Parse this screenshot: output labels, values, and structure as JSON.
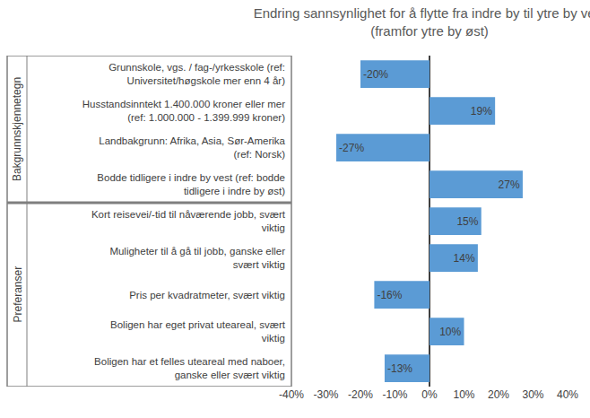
{
  "chart_data": {
    "type": "bar",
    "orientation": "horizontal",
    "title": "Endring sannsynlighet for å flytte fra indre by til ytre by vest\n(framfor ytre by øst)",
    "categories": [
      "Grunnskole, vgs. / fag-/yrkesskole (ref: Universitet/høgskole mer enn 4 år)",
      "Husstandsinntekt 1.400.000 kroner eller mer (ref: 1.000.000 - 1.399.999 kroner)",
      "Landbakgrunn: Afrika, Asia, Sør-Amerika (ref: Norsk)",
      "Bodde tidligere i indre by vest (ref: bodde tidligere i indre by øst)",
      "Kort reisevei/-tid til nåværende jobb, svært viktig",
      "Muligheter til å gå til jobb, ganske eller svært viktig",
      "Pris per kvadratmeter, svært viktig",
      "Boligen har eget privat uteareal, svært viktig",
      "Boligen har et felles uteareal med naboer, ganske eller svært viktig"
    ],
    "category_groups": [
      "Bakgrunnskjennetegn",
      "Bakgrunnskjennetegn",
      "Bakgrunnskjennetegn",
      "Bakgrunnskjennetegn",
      "Preferanser",
      "Preferanser",
      "Preferanser",
      "Preferanser",
      "Preferanser"
    ],
    "values": [
      -20,
      19,
      -27,
      27,
      15,
      14,
      -16,
      10,
      -13
    ],
    "value_labels": [
      "-20%",
      "19%",
      "-27%",
      "27%",
      "15%",
      "14%",
      "-16%",
      "10%",
      "-13%"
    ],
    "data_labels": true,
    "color": "#5b9bd5",
    "xlim": [
      -40,
      40
    ],
    "xticks": [
      {
        "value": -40,
        "label": "-40%"
      },
      {
        "value": -30,
        "label": "-30%"
      },
      {
        "value": -20,
        "label": "-20%"
      },
      {
        "value": -10,
        "label": "-10%"
      },
      {
        "value": 0,
        "label": "0%"
      },
      {
        "value": 10,
        "label": "10%"
      },
      {
        "value": 20,
        "label": "20%"
      },
      {
        "value": 30,
        "label": "30%"
      },
      {
        "value": 40,
        "label": "40%"
      }
    ],
    "grid": false
  }
}
